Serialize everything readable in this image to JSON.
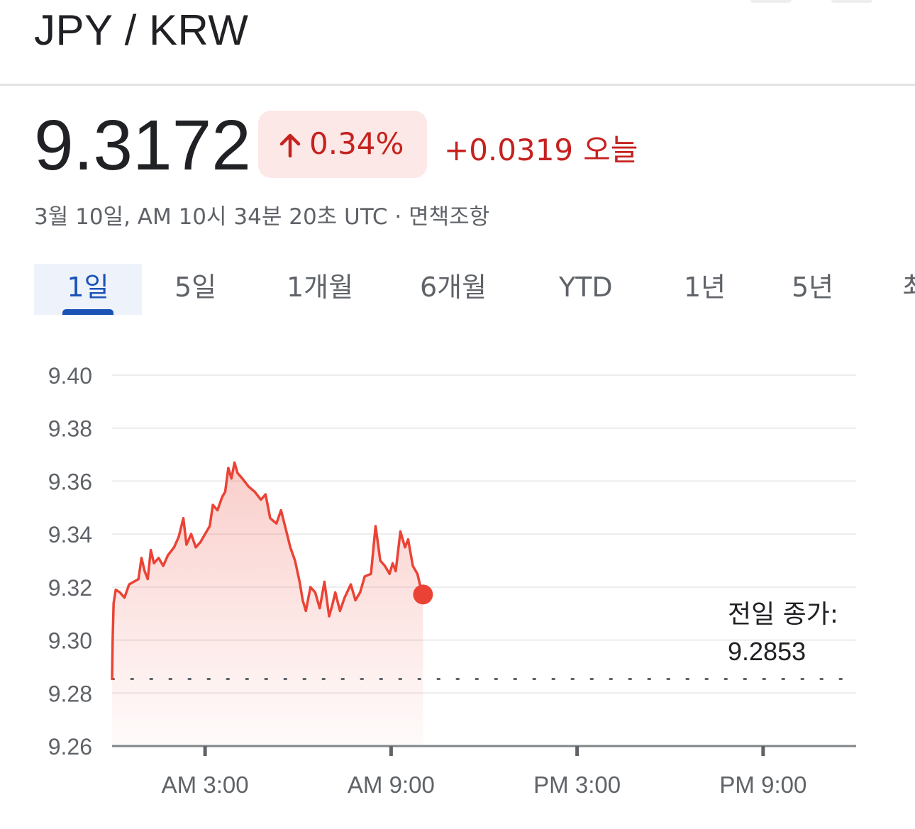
{
  "header": {
    "title": "JPY / KRW"
  },
  "quote": {
    "price": "9.3172",
    "change_percent": "0.34%",
    "change_abs": "+0.0319",
    "change_period": "오늘",
    "timestamp": "3월 10일, AM 10시 34분 20초 UTC",
    "separator": "·",
    "disclaimer": "면책조항",
    "colors": {
      "down_red": "#c5221f",
      "badge_bg": "#fce8e6",
      "line": "#ea4335",
      "tab_blue": "#1a53b6"
    },
    "icon": "arrow-up-icon"
  },
  "tabs": [
    {
      "label": "1일",
      "active": true
    },
    {
      "label": "5일"
    },
    {
      "label": "1개월"
    },
    {
      "label": "6개월"
    },
    {
      "label": "YTD"
    },
    {
      "label": "1년"
    },
    {
      "label": "5년"
    },
    {
      "label": "최"
    }
  ],
  "chart_data": {
    "type": "area",
    "title": "",
    "xlabel": "",
    "ylabel": "",
    "ylim": [
      9.26,
      9.4
    ],
    "y_ticks": [
      "9.40",
      "9.38",
      "9.36",
      "9.34",
      "9.32",
      "9.30",
      "9.28",
      "9.26"
    ],
    "x_ticks": [
      {
        "label": "AM 3:00",
        "hour": 3
      },
      {
        "label": "AM 9:00",
        "hour": 9
      },
      {
        "label": "PM 3:00",
        "hour": 15
      },
      {
        "label": "PM 9:00",
        "hour": 21
      }
    ],
    "xlim_hours": [
      0,
      24
    ],
    "grid": true,
    "previous_close_label": "전일 종가:",
    "previous_close_value": "9.2853",
    "previous_close": 9.2853,
    "series": [
      {
        "points": [
          [
            0.0,
            9.2853
          ],
          [
            0.02,
            9.301
          ],
          [
            0.05,
            9.314
          ],
          [
            0.12,
            9.319
          ],
          [
            0.25,
            9.318
          ],
          [
            0.4,
            9.316
          ],
          [
            0.55,
            9.321
          ],
          [
            0.7,
            9.322
          ],
          [
            0.85,
            9.323
          ],
          [
            0.95,
            9.331
          ],
          [
            1.05,
            9.326
          ],
          [
            1.15,
            9.323
          ],
          [
            1.25,
            9.334
          ],
          [
            1.35,
            9.329
          ],
          [
            1.5,
            9.331
          ],
          [
            1.65,
            9.328
          ],
          [
            1.8,
            9.332
          ],
          [
            2.0,
            9.335
          ],
          [
            2.15,
            9.339
          ],
          [
            2.3,
            9.346
          ],
          [
            2.4,
            9.336
          ],
          [
            2.55,
            9.34
          ],
          [
            2.7,
            9.335
          ],
          [
            2.85,
            9.337
          ],
          [
            3.0,
            9.34
          ],
          [
            3.15,
            9.343
          ],
          [
            3.25,
            9.351
          ],
          [
            3.4,
            9.349
          ],
          [
            3.55,
            9.354
          ],
          [
            3.65,
            9.356
          ],
          [
            3.75,
            9.365
          ],
          [
            3.85,
            9.361
          ],
          [
            3.95,
            9.367
          ],
          [
            4.05,
            9.363
          ],
          [
            4.2,
            9.361
          ],
          [
            4.4,
            9.358
          ],
          [
            4.6,
            9.356
          ],
          [
            4.8,
            9.353
          ],
          [
            4.95,
            9.355
          ],
          [
            5.1,
            9.346
          ],
          [
            5.3,
            9.344
          ],
          [
            5.45,
            9.349
          ],
          [
            5.6,
            9.342
          ],
          [
            5.75,
            9.335
          ],
          [
            5.9,
            9.33
          ],
          [
            6.05,
            9.322
          ],
          [
            6.15,
            9.315
          ],
          [
            6.25,
            9.311
          ],
          [
            6.4,
            9.32
          ],
          [
            6.55,
            9.318
          ],
          [
            6.7,
            9.312
          ],
          [
            6.85,
            9.322
          ],
          [
            7.0,
            9.309
          ],
          [
            7.1,
            9.313
          ],
          [
            7.2,
            9.318
          ],
          [
            7.35,
            9.311
          ],
          [
            7.5,
            9.316
          ],
          [
            7.7,
            9.321
          ],
          [
            7.85,
            9.315
          ],
          [
            8.0,
            9.318
          ],
          [
            8.15,
            9.324
          ],
          [
            8.35,
            9.325
          ],
          [
            8.5,
            9.343
          ],
          [
            8.65,
            9.33
          ],
          [
            8.8,
            9.328
          ],
          [
            8.95,
            9.325
          ],
          [
            9.05,
            9.329
          ],
          [
            9.15,
            9.326
          ],
          [
            9.3,
            9.341
          ],
          [
            9.45,
            9.335
          ],
          [
            9.55,
            9.338
          ],
          [
            9.7,
            9.328
          ],
          [
            9.85,
            9.325
          ],
          [
            9.95,
            9.32
          ],
          [
            10.03,
            9.3172
          ]
        ]
      }
    ]
  }
}
